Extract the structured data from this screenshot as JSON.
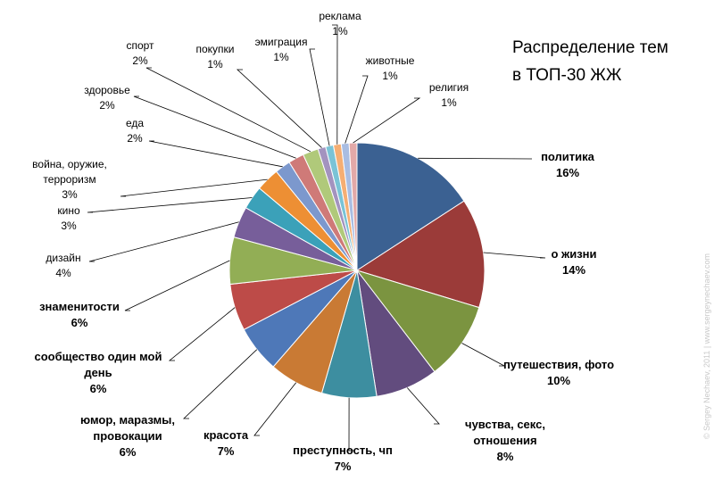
{
  "chart_data": {
    "type": "pie",
    "title": "Распределение тем\nв ТОП-30 ЖЖ",
    "watermark": "© Sergey Nechaev, 2011  |  www.sergeynechaev.com",
    "slices": [
      {
        "label": "политика",
        "value": 16,
        "display": "16%",
        "color": "#3b6192"
      },
      {
        "label": "о жизни",
        "value": 14,
        "display": "14%",
        "color": "#9b3b39"
      },
      {
        "label": "путешествия, фото",
        "value": 10,
        "display": "10%",
        "color": "#7b9440"
      },
      {
        "label": "чувства, секс, отношения",
        "value": 8,
        "display": "8%",
        "color": "#624c7e"
      },
      {
        "label": "преступность, чп",
        "value": 7,
        "display": "7%",
        "color": "#3d8ea0"
      },
      {
        "label": "красота",
        "value": 7,
        "display": "7%",
        "color": "#c97a34"
      },
      {
        "label": "юмор, маразмы, провокации",
        "value": 6,
        "display": "6%",
        "color": "#4e78b8"
      },
      {
        "label": "сообщество один мой день",
        "value": 6,
        "display": "6%",
        "color": "#bd4b48"
      },
      {
        "label": "знаменитости",
        "value": 6,
        "display": "6%",
        "color": "#92ae55"
      },
      {
        "label": "дизайн",
        "value": 4,
        "display": "4%",
        "color": "#775e9a"
      },
      {
        "label": "кино",
        "value": 3,
        "display": "3%",
        "color": "#3ba1b9"
      },
      {
        "label": "война, оружие, терроризм",
        "value": 3,
        "display": "3%",
        "color": "#ed8f34"
      },
      {
        "label": "еда",
        "value": 2,
        "display": "2%",
        "color": "#7c98cd"
      },
      {
        "label": "здоровье",
        "value": 2,
        "display": "2%",
        "color": "#cf7a78"
      },
      {
        "label": "спорт",
        "value": 2,
        "display": "2%",
        "color": "#b0c97a"
      },
      {
        "label": "покупки",
        "value": 1,
        "display": "1%",
        "color": "#a393bf"
      },
      {
        "label": "эмиграция",
        "value": 1,
        "display": "1%",
        "color": "#7ac3d6"
      },
      {
        "label": "реклама",
        "value": 1,
        "display": "1%",
        "color": "#f5ae73"
      },
      {
        "label": "животные",
        "value": 1,
        "display": "1%",
        "color": "#a9bde2"
      },
      {
        "label": "религия",
        "value": 1,
        "display": "1%",
        "color": "#e2a9a8"
      }
    ]
  }
}
